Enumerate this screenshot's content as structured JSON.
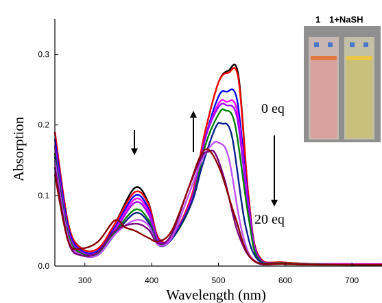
{
  "chart_data": {
    "type": "line",
    "title": "",
    "xlabel": "Wavelength (nm)",
    "ylabel": "Absorption",
    "xlim": [
      255,
      745
    ],
    "ylim": [
      0,
      0.35
    ],
    "x_ticks": [
      300,
      400,
      500,
      600,
      700
    ],
    "y_ticks": [
      0.0,
      0.1,
      0.2,
      0.3
    ],
    "grid": false,
    "annotations": {
      "start_label": "0 eq",
      "end_label": "20 eq",
      "inset_label_1": "1",
      "inset_label_2": "1+NaSH"
    },
    "colors": {
      "inset_background": "#8f8f8f",
      "cuvette_left": "#d7a19c",
      "cuvette_right": "#c9bf7d"
    },
    "series": [
      {
        "color": "#000000",
        "x": [
          255,
          275,
          295,
          320,
          345,
          375,
          395,
          410,
          430,
          460,
          480,
          500,
          515,
          530,
          545,
          560,
          600,
          700,
          745
        ],
        "y": [
          0.19,
          0.06,
          0.025,
          0.025,
          0.06,
          0.111,
          0.09,
          0.04,
          0.04,
          0.1,
          0.19,
          0.26,
          0.277,
          0.27,
          0.1,
          0.015,
          0.005,
          0.002,
          0.002
        ]
      },
      {
        "color": "#ff0000",
        "x": [
          255,
          275,
          295,
          320,
          345,
          375,
          395,
          410,
          430,
          460,
          480,
          500,
          515,
          530,
          545,
          560,
          600,
          700,
          745
        ],
        "y": [
          0.19,
          0.06,
          0.025,
          0.025,
          0.06,
          0.105,
          0.088,
          0.04,
          0.04,
          0.1,
          0.19,
          0.26,
          0.274,
          0.265,
          0.1,
          0.015,
          0.005,
          0.002,
          0.002
        ]
      },
      {
        "color": "#0000ff",
        "x": [
          255,
          275,
          295,
          320,
          345,
          375,
          395,
          410,
          430,
          460,
          480,
          500,
          512,
          528,
          545,
          560,
          600,
          700,
          745
        ],
        "y": [
          0.18,
          0.055,
          0.022,
          0.022,
          0.055,
          0.1,
          0.082,
          0.037,
          0.04,
          0.095,
          0.18,
          0.24,
          0.247,
          0.235,
          0.09,
          0.013,
          0.004,
          0.002,
          0.002
        ]
      },
      {
        "color": "#ff00ff",
        "x": [
          255,
          275,
          295,
          320,
          345,
          375,
          395,
          410,
          430,
          460,
          480,
          500,
          512,
          528,
          545,
          560,
          600,
          700,
          745
        ],
        "y": [
          0.17,
          0.05,
          0.02,
          0.02,
          0.052,
          0.095,
          0.078,
          0.036,
          0.04,
          0.095,
          0.18,
          0.23,
          0.233,
          0.22,
          0.085,
          0.012,
          0.004,
          0.003,
          0.003
        ]
      },
      {
        "color": "#a000ff",
        "x": [
          255,
          275,
          295,
          320,
          345,
          375,
          395,
          410,
          430,
          460,
          480,
          500,
          512,
          528,
          545,
          560,
          600,
          700,
          745
        ],
        "y": [
          0.17,
          0.05,
          0.02,
          0.02,
          0.05,
          0.09,
          0.074,
          0.035,
          0.04,
          0.095,
          0.18,
          0.225,
          0.228,
          0.21,
          0.08,
          0.012,
          0.004,
          0.002,
          0.002
        ]
      },
      {
        "color": "#008000",
        "x": [
          255,
          275,
          295,
          320,
          345,
          375,
          395,
          410,
          430,
          460,
          480,
          500,
          510,
          525,
          545,
          560,
          600,
          700,
          745
        ],
        "y": [
          0.16,
          0.045,
          0.018,
          0.018,
          0.048,
          0.08,
          0.066,
          0.032,
          0.038,
          0.09,
          0.17,
          0.215,
          0.221,
          0.2,
          0.07,
          0.01,
          0.004,
          0.002,
          0.002
        ]
      },
      {
        "color": "#0a1e8c",
        "x": [
          255,
          275,
          295,
          320,
          345,
          375,
          395,
          410,
          430,
          460,
          475,
          495,
          505,
          520,
          540,
          560,
          600,
          700,
          745
        ],
        "y": [
          0.155,
          0.04,
          0.016,
          0.016,
          0.045,
          0.075,
          0.062,
          0.03,
          0.038,
          0.09,
          0.14,
          0.195,
          0.202,
          0.185,
          0.06,
          0.008,
          0.003,
          0.002,
          0.002
        ]
      },
      {
        "color": "#c050ff",
        "x": [
          255,
          275,
          295,
          320,
          345,
          375,
          395,
          410,
          430,
          455,
          475,
          490,
          500,
          515,
          535,
          555,
          600,
          700,
          745
        ],
        "y": [
          0.15,
          0.04,
          0.016,
          0.016,
          0.045,
          0.065,
          0.058,
          0.03,
          0.04,
          0.1,
          0.15,
          0.172,
          0.175,
          0.155,
          0.05,
          0.007,
          0.003,
          0.002,
          0.002
        ]
      },
      {
        "color": "#7a007a",
        "x": [
          255,
          275,
          295,
          320,
          345,
          375,
          395,
          410,
          430,
          455,
          475,
          485,
          495,
          510,
          530,
          555,
          600,
          700,
          745
        ],
        "y": [
          0.14,
          0.035,
          0.015,
          0.02,
          0.05,
          0.06,
          0.052,
          0.032,
          0.045,
          0.11,
          0.155,
          0.162,
          0.16,
          0.12,
          0.045,
          0.006,
          0.003,
          0.002,
          0.002
        ]
      },
      {
        "color": "#8b0000",
        "x": [
          255,
          275,
          295,
          320,
          345,
          360,
          375,
          395,
          410,
          430,
          455,
          470,
          480,
          490,
          505,
          525,
          550,
          600,
          700,
          745
        ],
        "y": [
          0.13,
          0.035,
          0.025,
          0.035,
          0.065,
          0.055,
          0.05,
          0.04,
          0.035,
          0.05,
          0.11,
          0.15,
          0.165,
          0.16,
          0.13,
          0.07,
          0.01,
          0.003,
          0.002,
          0.002
        ]
      }
    ]
  }
}
